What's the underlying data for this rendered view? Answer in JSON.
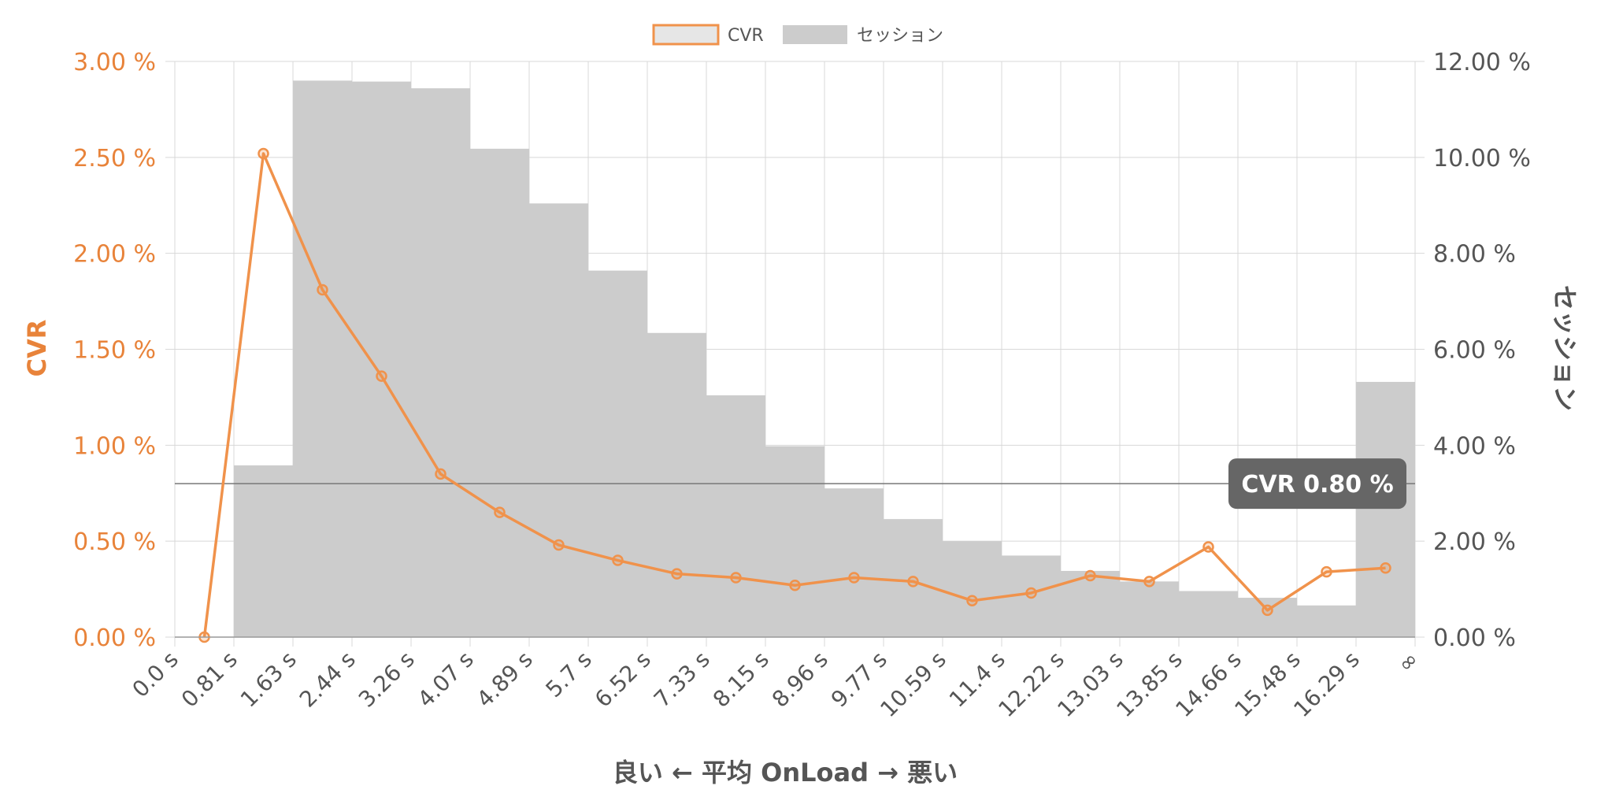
{
  "chart_data": {
    "type": "bar",
    "x_label": "良い ← 平均 OnLoad → 悪い",
    "x_ticks": [
      "0.0 s",
      "0.81 s",
      "1.63 s",
      "2.44 s",
      "3.26 s",
      "4.07 s",
      "4.89 s",
      "5.7 s",
      "6.52 s",
      "7.33 s",
      "8.15 s",
      "8.96 s",
      "9.77 s",
      "10.59 s",
      "11.4 s",
      "12.22 s",
      "13.03 s",
      "13.85 s",
      "14.66 s",
      "15.48 s",
      "16.29 s",
      "∞"
    ],
    "legend": [
      {
        "name": "CVR",
        "type": "line"
      },
      {
        "name": "セッション",
        "type": "bar"
      }
    ],
    "series": [
      {
        "name": "セッション",
        "type": "bar",
        "axis": "right",
        "values": [
          0.0,
          3.58,
          11.6,
          11.58,
          11.44,
          10.18,
          9.04,
          7.64,
          6.34,
          5.04,
          3.98,
          3.1,
          2.46,
          2.0,
          1.7,
          1.38,
          1.16,
          0.96,
          0.82,
          0.66,
          5.32
        ]
      },
      {
        "name": "CVR",
        "type": "line",
        "axis": "left",
        "values": [
          0.0,
          2.52,
          1.81,
          1.36,
          0.85,
          0.65,
          0.48,
          0.4,
          0.33,
          0.31,
          0.27,
          0.31,
          0.29,
          0.19,
          0.23,
          0.32,
          0.29,
          0.47,
          0.14,
          0.34,
          0.36
        ]
      }
    ],
    "left_axis": {
      "title": "CVR",
      "min": 0,
      "max": 3.0,
      "step": 0.5,
      "tick_labels": [
        "0.00 %",
        "0.50 %",
        "1.00 %",
        "1.50 %",
        "2.00 %",
        "2.50 %",
        "3.00 %"
      ]
    },
    "right_axis": {
      "title": "セッション",
      "min": 0,
      "max": 12.0,
      "step": 2.0,
      "tick_labels": [
        "0.00 %",
        "2.00 %",
        "4.00 %",
        "6.00 %",
        "8.00 %",
        "10.00 %",
        "12.00 %"
      ]
    },
    "reference_line": {
      "axis": "left",
      "value": 0.8,
      "label": "CVR 0.80 %"
    },
    "grid": true,
    "legend_position": "top-center",
    "colors": {
      "cvr": "#F0924B",
      "cvr_axis_text": "#E8833A",
      "bars": "#CCCCCC",
      "right_axis_text": "#555555",
      "grid": "#D8D8D8",
      "reference_line": "#777777",
      "reference_label_bg": "#666666",
      "reference_label_text": "#FFFFFF"
    }
  }
}
